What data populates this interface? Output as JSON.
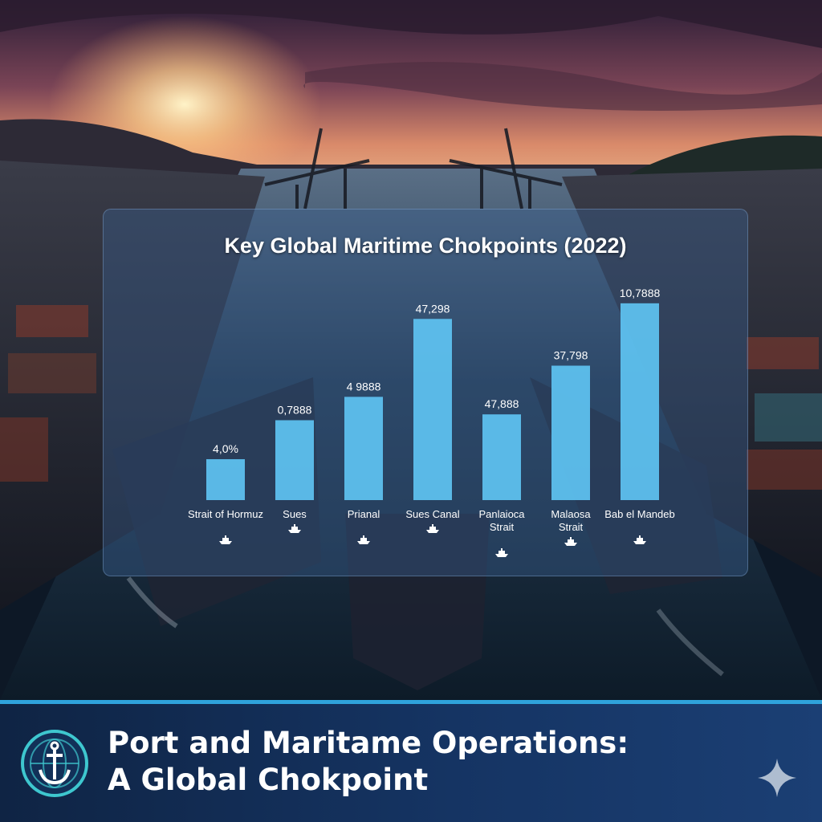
{
  "chart_data": {
    "type": "bar",
    "title": "Key Global Maritime Chokpoints (2022)",
    "categories": [
      [
        "Strait of Hormuz"
      ],
      [
        "Sues"
      ],
      [
        "Prianal"
      ],
      [
        "Sues Canal"
      ],
      [
        "Panlaioca",
        "Strait"
      ],
      [
        "Malaosa",
        "Strait"
      ],
      [
        "Bab el Mandeb"
      ]
    ],
    "values": [
      21,
      41,
      53,
      93,
      44,
      69,
      101
    ],
    "value_labels": [
      "4,0%",
      "0,7888",
      "4 9888",
      "47,298",
      "47,888",
      "37,798",
      "10,7888"
    ],
    "ylim": [
      0,
      110
    ],
    "bar_color": "#5ec3f2",
    "icon": "ship-icon"
  },
  "banner": {
    "title_line1": "Port and Maritame Operations:",
    "title_line2": "A Global Chokpoint",
    "logo_icon": "anchor-globe-icon",
    "decor_icon": "sparkle-icon",
    "accent": "#2fa3dc"
  }
}
